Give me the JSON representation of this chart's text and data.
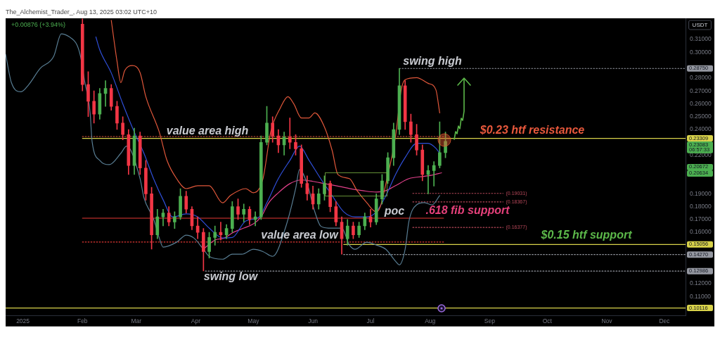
{
  "chart_data": {
    "type": "candlestick",
    "title": "The_Alchemist_Trader_, Aug 13, 2025 03:02 UTC+10",
    "subtitle": "+0.00876 (+3.94%)",
    "ylabel": "USDT",
    "marker": "none",
    "xlim": [
      "2024-12-23",
      "2025-12-12"
    ],
    "xticks": [
      {
        "value": "2025-01-01",
        "label": "2025"
      },
      {
        "value": "2025-02-01",
        "label": "Feb"
      },
      {
        "value": "2025-03-01",
        "label": "Mar"
      },
      {
        "value": "2025-04-01",
        "label": "Apr"
      },
      {
        "value": "2025-05-01",
        "label": "May"
      },
      {
        "value": "2025-06-01",
        "label": "Jun"
      },
      {
        "value": "2025-07-01",
        "label": "Jul"
      },
      {
        "value": "2025-08-01",
        "label": "Aug"
      },
      {
        "value": "2025-09-01",
        "label": "Sep"
      },
      {
        "value": "2025-10-01",
        "label": "Oct"
      },
      {
        "value": "2025-11-01",
        "label": "Nov"
      },
      {
        "value": "2025-12-01",
        "label": "Dec"
      }
    ],
    "ylim": [
      0.095,
      0.3265
    ],
    "yticks": [
      {
        "value": 0.31,
        "label": "0.31000"
      },
      {
        "value": 0.3,
        "label": "0.30000"
      },
      {
        "value": 0.28,
        "label": "0.28000"
      },
      {
        "value": 0.27,
        "label": "0.27000"
      },
      {
        "value": 0.26,
        "label": "0.26000"
      },
      {
        "value": 0.25,
        "label": "0.25000"
      },
      {
        "value": 0.24,
        "label": "0.24000"
      },
      {
        "value": 0.22,
        "label": "0.22000"
      },
      {
        "value": 0.19,
        "label": "0.19000"
      },
      {
        "value": 0.18,
        "label": "0.18000"
      },
      {
        "value": 0.17,
        "label": "0.17000"
      },
      {
        "value": 0.16,
        "label": "0.16000"
      },
      {
        "value": 0.12,
        "label": "0.12000"
      },
      {
        "value": 0.11,
        "label": "0.11000"
      }
    ],
    "series": [
      {
        "x": [
          "2025-02-01",
          "2025-02-04",
          "2025-02-07",
          "2025-02-10",
          "2025-02-13",
          "2025-02-16",
          "2025-02-19",
          "2025-02-22",
          "2025-02-25",
          "2025-02-28",
          "2025-03-03",
          "2025-03-06",
          "2025-03-09",
          "2025-03-12",
          "2025-03-15",
          "2025-03-18",
          "2025-03-21",
          "2025-03-24",
          "2025-03-27",
          "2025-03-30",
          "2025-04-02",
          "2025-04-05",
          "2025-04-08",
          "2025-04-11",
          "2025-04-14",
          "2025-04-17",
          "2025-04-20",
          "2025-04-23",
          "2025-04-26",
          "2025-04-29",
          "2025-05-02",
          "2025-05-05",
          "2025-05-08",
          "2025-05-11",
          "2025-05-14",
          "2025-05-17",
          "2025-05-20",
          "2025-05-23",
          "2025-05-26",
          "2025-05-29",
          "2025-06-01",
          "2025-06-04",
          "2025-06-07",
          "2025-06-10",
          "2025-06-13",
          "2025-06-16",
          "2025-06-19",
          "2025-06-22",
          "2025-06-25",
          "2025-06-28",
          "2025-07-01",
          "2025-07-04",
          "2025-07-07",
          "2025-07-10",
          "2025-07-13",
          "2025-07-16",
          "2025-07-19",
          "2025-07-22",
          "2025-07-25",
          "2025-07-28",
          "2025-07-31",
          "2025-08-03",
          "2025-08-06",
          "2025-08-09"
        ],
        "ohlc": [
          [
            0.322,
            0.326,
            0.27,
            0.275
          ],
          [
            0.275,
            0.285,
            0.25,
            0.262
          ],
          [
            0.262,
            0.27,
            0.245,
            0.252
          ],
          [
            0.252,
            0.272,
            0.248,
            0.268
          ],
          [
            0.268,
            0.278,
            0.258,
            0.272
          ],
          [
            0.272,
            0.275,
            0.255,
            0.258
          ],
          [
            0.258,
            0.262,
            0.24,
            0.245
          ],
          [
            0.245,
            0.25,
            0.232,
            0.236
          ],
          [
            0.236,
            0.24,
            0.205,
            0.212
          ],
          [
            0.212,
            0.241,
            0.205,
            0.235
          ],
          [
            0.235,
            0.238,
            0.205,
            0.21
          ],
          [
            0.21,
            0.216,
            0.185,
            0.19
          ],
          [
            0.19,
            0.195,
            0.147,
            0.158
          ],
          [
            0.158,
            0.178,
            0.155,
            0.172
          ],
          [
            0.172,
            0.178,
            0.165,
            0.175
          ],
          [
            0.175,
            0.18,
            0.165,
            0.168
          ],
          [
            0.168,
            0.176,
            0.163,
            0.172
          ],
          [
            0.172,
            0.194,
            0.17,
            0.188
          ],
          [
            0.188,
            0.192,
            0.175,
            0.178
          ],
          [
            0.178,
            0.18,
            0.162,
            0.165
          ],
          [
            0.165,
            0.172,
            0.155,
            0.16
          ],
          [
            0.16,
            0.163,
            0.13,
            0.145
          ],
          [
            0.145,
            0.16,
            0.14,
            0.156
          ],
          [
            0.156,
            0.165,
            0.15,
            0.16
          ],
          [
            0.16,
            0.168,
            0.154,
            0.158
          ],
          [
            0.158,
            0.166,
            0.155,
            0.163
          ],
          [
            0.163,
            0.184,
            0.16,
            0.18
          ],
          [
            0.18,
            0.186,
            0.17,
            0.174
          ],
          [
            0.174,
            0.182,
            0.168,
            0.178
          ],
          [
            0.178,
            0.18,
            0.166,
            0.17
          ],
          [
            0.17,
            0.176,
            0.165,
            0.172
          ],
          [
            0.172,
            0.235,
            0.17,
            0.23
          ],
          [
            0.23,
            0.258,
            0.228,
            0.245
          ],
          [
            0.245,
            0.25,
            0.23,
            0.235
          ],
          [
            0.235,
            0.24,
            0.222,
            0.228
          ],
          [
            0.228,
            0.238,
            0.22,
            0.234
          ],
          [
            0.234,
            0.249,
            0.225,
            0.23
          ],
          [
            0.23,
            0.236,
            0.22,
            0.225
          ],
          [
            0.225,
            0.228,
            0.195,
            0.198
          ],
          [
            0.198,
            0.204,
            0.185,
            0.19
          ],
          [
            0.19,
            0.196,
            0.178,
            0.182
          ],
          [
            0.182,
            0.194,
            0.178,
            0.19
          ],
          [
            0.19,
            0.204,
            0.185,
            0.198
          ],
          [
            0.198,
            0.2,
            0.176,
            0.18
          ],
          [
            0.18,
            0.184,
            0.165,
            0.168
          ],
          [
            0.168,
            0.172,
            0.143,
            0.155
          ],
          [
            0.155,
            0.17,
            0.15,
            0.165
          ],
          [
            0.165,
            0.168,
            0.155,
            0.158
          ],
          [
            0.158,
            0.168,
            0.156,
            0.165
          ],
          [
            0.165,
            0.175,
            0.162,
            0.172
          ],
          [
            0.172,
            0.178,
            0.164,
            0.168
          ],
          [
            0.168,
            0.19,
            0.166,
            0.186
          ],
          [
            0.186,
            0.205,
            0.182,
            0.2
          ],
          [
            0.2,
            0.222,
            0.198,
            0.218
          ],
          [
            0.218,
            0.245,
            0.212,
            0.24
          ],
          [
            0.24,
            0.2875,
            0.236,
            0.274
          ],
          [
            0.274,
            0.278,
            0.24,
            0.246
          ],
          [
            0.246,
            0.252,
            0.23,
            0.236
          ],
          [
            0.236,
            0.244,
            0.22,
            0.224
          ],
          [
            0.224,
            0.228,
            0.2,
            0.205
          ],
          [
            0.205,
            0.212,
            0.19,
            0.208
          ],
          [
            0.208,
            0.215,
            0.196,
            0.212
          ],
          [
            0.212,
            0.246,
            0.21,
            0.222
          ],
          [
            0.222,
            0.238,
            0.218,
            0.23083
          ]
        ],
        "colors": [
          "#f23645",
          "#f23645",
          "#f23645",
          "#4caf50",
          "#4caf50",
          "#f23645",
          "#f23645",
          "#f23645",
          "#f23645",
          "#4caf50",
          "#f23645",
          "#f23645",
          "#f23645",
          "#4caf50",
          "#4caf50",
          "#f23645",
          "#4caf50",
          "#4caf50",
          "#f23645",
          "#f23645",
          "#f23645",
          "#f23645",
          "#4caf50",
          "#4caf50",
          "#f23645",
          "#4caf50",
          "#4caf50",
          "#f23645",
          "#4caf50",
          "#f23645",
          "#4caf50",
          "#4caf50",
          "#4caf50",
          "#f23645",
          "#f23645",
          "#4caf50",
          "#f23645",
          "#f23645",
          "#f23645",
          "#f23645",
          "#f23645",
          "#4caf50",
          "#4caf50",
          "#f23645",
          "#f23645",
          "#f23645",
          "#4caf50",
          "#f23645",
          "#4caf50",
          "#4caf50",
          "#f23645",
          "#4caf50",
          "#4caf50",
          "#4caf50",
          "#4caf50",
          "#4caf50",
          "#f23645",
          "#f23645",
          "#f23645",
          "#f23645",
          "#4caf50",
          "#4caf50",
          "#4caf50",
          "#4caf50"
        ]
      },
      {
        "type": "line",
        "color": "#e0573a",
        "x": [
          "2025-02-16",
          "2025-02-19",
          "2025-02-21",
          "2025-02-23",
          "2025-02-27",
          "2025-03-03",
          "2025-03-06",
          "2025-03-13",
          "2025-03-17",
          "2025-03-22",
          "2025-03-27",
          "2025-04-02",
          "2025-04-08",
          "2025-04-15",
          "2025-04-19",
          "2025-04-27",
          "2025-05-01",
          "2025-05-06",
          "2025-05-10",
          "2025-05-15",
          "2025-05-19",
          "2025-05-22",
          "2025-05-26",
          "2025-05-30",
          "2025-06-02",
          "2025-06-07",
          "2025-06-11",
          "2025-06-14",
          "2025-06-20",
          "2025-06-24",
          "2025-06-29",
          "2025-07-04",
          "2025-07-06",
          "2025-07-09",
          "2025-07-14",
          "2025-07-17",
          "2025-07-19",
          "2025-07-25",
          "2025-07-31",
          "2025-08-04",
          "2025-08-06"
        ],
        "values": [
          0.325,
          0.293,
          0.2765,
          0.2858,
          0.2897,
          0.2842,
          0.2655,
          0.238,
          0.216,
          0.2018,
          0.194,
          0.1963,
          0.1963,
          0.183,
          0.1886,
          0.194,
          0.1908,
          0.2018,
          0.238,
          0.2567,
          0.2655,
          0.26,
          0.249,
          0.249,
          0.2529,
          0.2419,
          0.2237,
          0.205,
          0.2018,
          0.1924,
          0.1831,
          0.1759,
          0.1798,
          0.1979,
          0.2347,
          0.271,
          0.2787,
          0.2803,
          0.2759,
          0.271,
          0.2529
        ]
      },
      {
        "type": "line",
        "color": "#2f4fd8",
        "x": [
          "2025-02-08",
          "2025-02-10",
          "2025-02-16",
          "2025-02-22",
          "2025-02-28",
          "2025-03-05",
          "2025-03-10",
          "2025-03-15",
          "2025-03-20",
          "2025-03-27",
          "2025-04-02",
          "2025-04-08",
          "2025-04-15",
          "2025-04-20",
          "2025-04-27",
          "2025-05-04",
          "2025-05-08",
          "2025-05-14",
          "2025-05-20",
          "2025-05-25",
          "2025-05-30",
          "2025-06-05",
          "2025-06-11",
          "2025-06-17",
          "2025-06-23",
          "2025-06-29",
          "2025-07-04",
          "2025-07-09",
          "2025-07-14",
          "2025-07-19",
          "2025-07-25",
          "2025-07-31",
          "2025-08-04",
          "2025-08-06"
        ],
        "values": [
          0.312,
          0.302,
          0.284,
          0.26,
          0.238,
          0.2215,
          0.2018,
          0.1853,
          0.172,
          0.1743,
          0.172,
          0.1633,
          0.1556,
          0.156,
          0.1688,
          0.172,
          0.183,
          0.2018,
          0.216,
          0.227,
          0.216,
          0.2018,
          0.1886,
          0.176,
          0.172,
          0.172,
          0.176,
          0.1886,
          0.205,
          0.2182,
          0.2292,
          0.2292,
          0.2254,
          0.2215
        ]
      },
      {
        "type": "line",
        "color": "#587d93",
        "x": [
          "2024-12-23",
          "2024-12-26",
          "2024-12-31",
          "2025-01-04",
          "2025-01-10",
          "2025-01-17",
          "2025-01-21",
          "2025-01-25",
          "2025-01-29",
          "2025-01-31",
          "2025-02-02",
          "2025-02-05",
          "2025-02-06",
          "2025-02-10",
          "2025-02-15",
          "2025-02-21",
          "2025-02-24",
          "2025-03-03",
          "2025-03-05",
          "2025-03-10",
          "2025-03-13",
          "2025-03-15",
          "2025-03-22",
          "2025-03-27",
          "2025-03-31",
          "2025-04-05",
          "2025-04-08",
          "2025-04-15",
          "2025-04-20",
          "2025-04-25",
          "2025-05-01",
          "2025-05-06",
          "2025-05-11",
          "2025-05-18",
          "2025-05-23",
          "2025-05-25",
          "2025-05-29",
          "2025-06-02",
          "2025-06-05",
          "2025-06-09",
          "2025-06-16",
          "2025-06-20",
          "2025-06-23",
          "2025-06-29",
          "2025-07-04",
          "2025-07-09",
          "2025-07-14",
          "2025-07-16",
          "2025-07-19",
          "2025-07-21",
          "2025-07-25",
          "2025-07-29",
          "2025-08-02",
          "2025-08-06"
        ],
        "values": [
          0.2985,
          0.2765,
          0.2693,
          0.2748,
          0.2875,
          0.2968,
          0.3144,
          0.3122,
          0.3062,
          0.2968,
          0.2787,
          0.2529,
          0.2309,
          0.216,
          0.2127,
          0.2215,
          0.227,
          0.2018,
          0.187,
          0.1705,
          0.1556,
          0.1485,
          0.1523,
          0.1578,
          0.1556,
          0.1468,
          0.1413,
          0.1391,
          0.143,
          0.143,
          0.1468,
          0.145,
          0.1413,
          0.165,
          0.194,
          0.2089,
          0.1979,
          0.1759,
          0.1649,
          0.1633,
          0.1633,
          0.1501,
          0.1468,
          0.1523,
          0.1501,
          0.1468,
          0.1375,
          0.1347,
          0.1468,
          0.1688,
          0.1814,
          0.1831,
          0.1814,
          0.1886
        ]
      },
      {
        "type": "line",
        "color": "#e0408a",
        "x": [
          "2025-04-05",
          "2025-04-11",
          "2025-04-16",
          "2025-04-20",
          "2025-04-26",
          "2025-05-01",
          "2025-05-05",
          "2025-05-09",
          "2025-05-14",
          "2025-05-20",
          "2025-05-26",
          "2025-06-01",
          "2025-06-07",
          "2025-06-13",
          "2025-06-20",
          "2025-06-27",
          "2025-07-04",
          "2025-07-09",
          "2025-07-14",
          "2025-07-21",
          "2025-07-28",
          "2025-08-02",
          "2025-08-07"
        ],
        "values": [
          0.147,
          0.154,
          0.1556,
          0.1595,
          0.1633,
          0.1666,
          0.172,
          0.183,
          0.1908,
          0.1979,
          0.2007,
          0.1996,
          0.1979,
          0.1963,
          0.1941,
          0.1924,
          0.1913,
          0.1924,
          0.1963,
          0.2018,
          0.2034,
          0.2045,
          0.2063
        ]
      },
      {
        "type": "line",
        "color": "#9598a1",
        "line_style": "dotted",
        "x": [
          "2025-07-16",
          "2025-12-12"
        ],
        "values": [
          0.2875,
          0.2875
        ],
        "value_labels": [
          null,
          "0.28750"
        ]
      },
      {
        "type": "line",
        "color": "#d8d24a",
        "line_style": "solid",
        "x": [
          "2025-02-01",
          "2025-12-12"
        ],
        "values": [
          0.23309,
          0.23309
        ],
        "value_labels": [
          null,
          "0.23309"
        ]
      },
      {
        "type": "line",
        "color": "#e0573a",
        "line_style": "dotted",
        "x": [
          "2025-02-01",
          "2025-08-09"
        ],
        "values": [
          0.2345,
          0.2345
        ]
      },
      {
        "type": "line",
        "color": "#e53935",
        "line_style": "solid",
        "x": [
          "2025-02-01",
          "2025-08-08"
        ],
        "values": [
          0.171,
          0.171
        ]
      },
      {
        "type": "line",
        "color": "#e53935",
        "line_style": "dotted",
        "x": [
          "2025-02-01",
          "2025-08-08"
        ],
        "values": [
          0.1525,
          0.1525
        ]
      },
      {
        "type": "line",
        "color": "#d8d24a",
        "line_style": "solid",
        "x": [
          "2025-06-17",
          "2025-12-12"
        ],
        "values": [
          0.15056,
          0.15056
        ],
        "value_labels": [
          null,
          "0.15056"
        ]
      },
      {
        "type": "line",
        "color": "#9598a1",
        "line_style": "dotted",
        "x": [
          "2025-06-17",
          "2025-12-12"
        ],
        "values": [
          0.1427,
          0.1427
        ],
        "value_labels": [
          null,
          "0.14270"
        ]
      },
      {
        "type": "line",
        "color": "#9598a1",
        "line_style": "dotted",
        "x": [
          "2025-04-06",
          "2025-12-12"
        ],
        "values": [
          0.12986,
          0.12986
        ],
        "value_labels": [
          null,
          "0.12986"
        ]
      },
      {
        "type": "line",
        "color": "#d8d24a",
        "line_style": "solid",
        "x": [
          "2024-12-23",
          "2025-12-12"
        ],
        "values": [
          0.10116,
          0.10116
        ],
        "value_labels": [
          null,
          "0.10116"
        ]
      },
      {
        "type": "line",
        "color": "#b8485a",
        "line_style": "dotted",
        "x": [
          "2025-07-23",
          "2025-09-08"
        ],
        "values": [
          0.19031,
          0.19031
        ],
        "value_labels": [
          null,
          "(0.19031)"
        ]
      },
      {
        "type": "line",
        "color": "#b8485a",
        "line_style": "dotted",
        "x": [
          "2025-07-23",
          "2025-09-08"
        ],
        "values": [
          0.18367,
          0.18367
        ],
        "value_labels": [
          null,
          "(0.18367)"
        ]
      },
      {
        "type": "line",
        "color": "#b8485a",
        "line_style": "dotted",
        "x": [
          "2025-07-23",
          "2025-09-08"
        ],
        "values": [
          0.16377,
          0.16377
        ],
        "value_labels": [
          null,
          "(0.16377)"
        ]
      }
    ],
    "annotations": [
      "swing high",
      "value area high",
      "$0.23 htf resistance",
      "poc",
      ".618 fib support",
      "value area low",
      "$0.15 htf support",
      "swing low",
      "0.23083 06:57:33",
      "0.20672",
      "0.20634"
    ]
  }
}
